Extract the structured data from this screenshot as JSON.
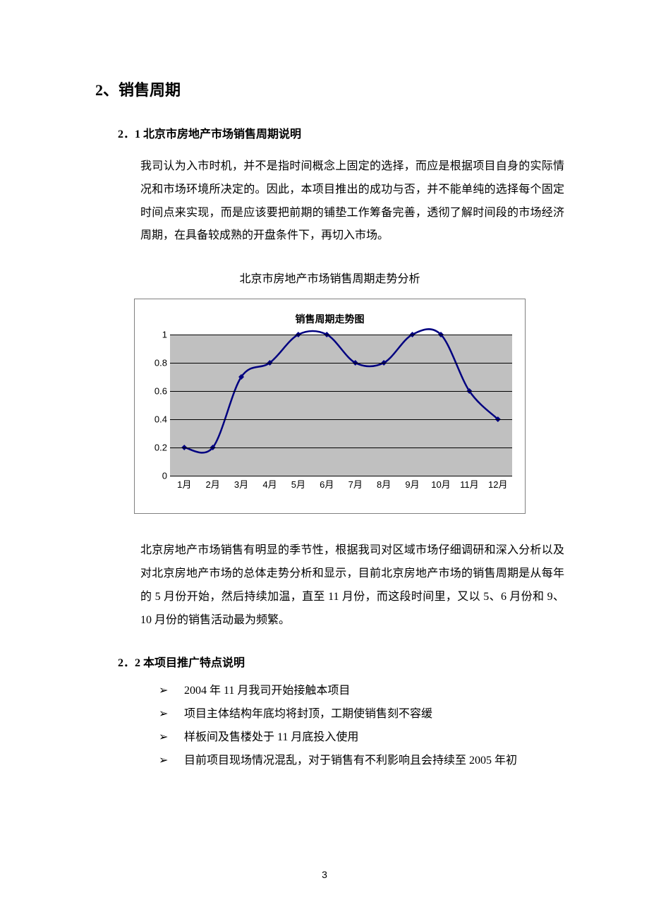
{
  "heading_main": "2、销售周期",
  "section_2_1": {
    "title": "2．1 北京市房地产市场销售周期说明",
    "para": "我司认为入市时机，并不是指时间概念上固定的选择，而应是根据项目自身的实际情况和市场环境所决定的。因此，本项目推出的成功与否，并不能单纯的选择每个固定时间点来实现，而是应该要把前期的铺垫工作筹备完善，透彻了解时间段的市场经济周期，在具备较成熟的开盘条件下，再切入市场。"
  },
  "chart": {
    "caption": "北京市房地产市场销售周期走势分析",
    "title": "销售周期走势图",
    "type": "line",
    "categories": [
      "1月",
      "2月",
      "3月",
      "4月",
      "5月",
      "6月",
      "7月",
      "8月",
      "9月",
      "10月",
      "11月",
      "12月"
    ],
    "values": [
      0.2,
      0.2,
      0.7,
      0.8,
      1.0,
      1.0,
      0.8,
      0.8,
      1.0,
      1.0,
      0.6,
      0.4
    ],
    "ylim": [
      0,
      1
    ],
    "ytick_step": 0.2,
    "yticks": [
      "0",
      "0.2",
      "0.4",
      "0.6",
      "0.8",
      "1"
    ],
    "line_color": "#000080",
    "line_width": 2.5,
    "marker": "diamond",
    "marker_size": 8,
    "marker_color": "#000080",
    "plot_background": "#c0c0c0",
    "grid_color": "#000000",
    "outer_background": "#ffffff",
    "title_fontsize": 14,
    "label_fontsize": 13
  },
  "para_after_chart": "北京房地产市场销售有明显的季节性，根据我司对区域市场仔细调研和深入分析以及对北京房地产市场的总体走势分析和显示，目前北京房地产市场的销售周期是从每年的 5 月份开始，然后持续加温，直至 11 月份，而这段时间里，又以 5、6 月份和 9、10 月份的销售活动最为频繁。",
  "section_2_2": {
    "title": "2．2 本项目推广特点说明",
    "bullets": [
      "2004 年 11 月我司开始接触本项目",
      "项目主体结构年底均将封顶，工期使销售刻不容缓",
      "样板间及售楼处于 11 月底投入使用",
      "目前项目现场情况混乱，对于销售有不利影响且会持续至 2005 年初"
    ],
    "bullet_glyph": "➢"
  },
  "page_number": "3"
}
